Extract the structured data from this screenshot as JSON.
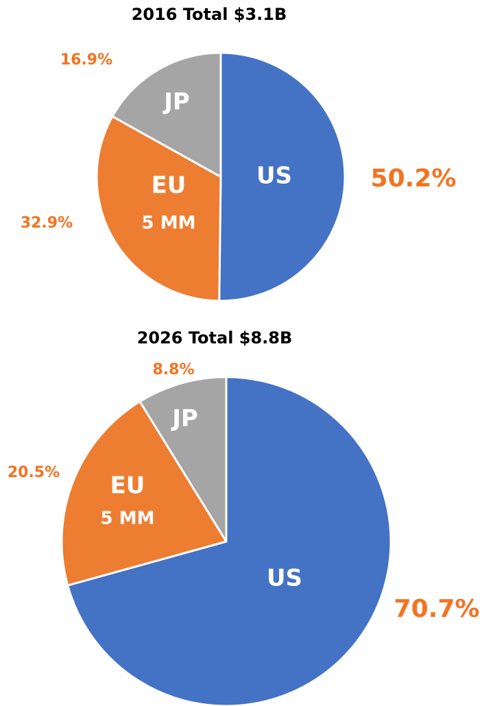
{
  "chart_data": [
    {
      "type": "pie",
      "title": "2016 Total $3.1B",
      "categories": [
        "US",
        "EU",
        "JP"
      ],
      "values": [
        50.2,
        32.9,
        16.9
      ],
      "value_labels": [
        "50.2%",
        "32.9%",
        "16.9%"
      ],
      "annotation": "5 MM",
      "colors": [
        "#4472c4",
        "#ed7d31",
        "#a5a5a5"
      ],
      "label_color": "#f47321"
    },
    {
      "type": "pie",
      "title": "2026 Total $8.8B",
      "categories": [
        "US",
        "EU",
        "JP"
      ],
      "values": [
        70.7,
        20.5,
        8.8
      ],
      "value_labels": [
        "70.7%",
        "20.5%",
        "8.8%"
      ],
      "annotation": "5 MM",
      "colors": [
        "#4472c4",
        "#ed7d31",
        "#a5a5a5"
      ],
      "label_color": "#f47321"
    }
  ]
}
